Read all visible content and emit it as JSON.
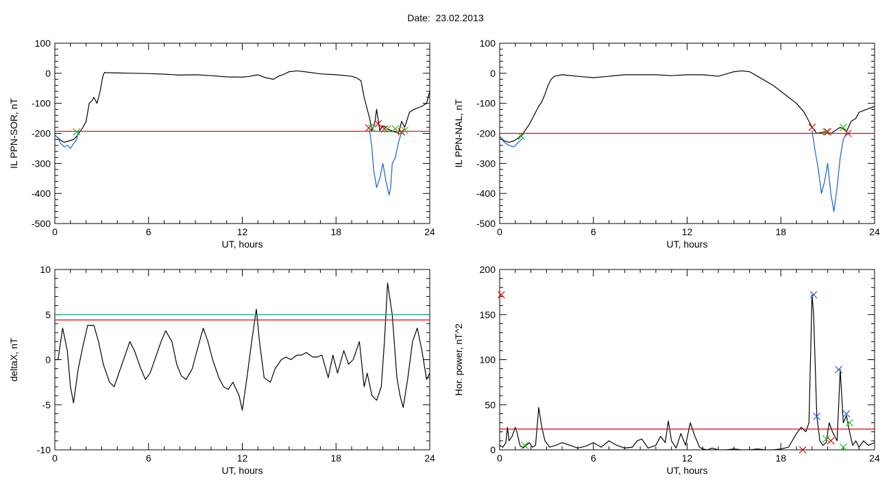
{
  "page": {
    "title": "Date:  23.02.2013"
  },
  "colors": {
    "trace": "#000000",
    "threshold": "#e00000",
    "threshold2": "#1a9e8e",
    "highlight": "#1060d0",
    "marker_red": "#e00000",
    "marker_green": "#20c020",
    "marker_blue": "#2060e0"
  },
  "chart_data": [
    {
      "type": "line",
      "title": "",
      "xlabel": "UT, hours",
      "ylabel": "IL PPN-SOR, nT",
      "xlim": [
        0,
        24
      ],
      "ylim": [
        -500,
        100
      ],
      "xticks": [
        0,
        6,
        12,
        18,
        24
      ],
      "yticks": [
        -500,
        -400,
        -300,
        -200,
        -100,
        0,
        100
      ],
      "grid": false,
      "thresholds": [
        {
          "y": -193,
          "color": "red"
        }
      ],
      "series": [
        {
          "color": "black",
          "x": [
            0,
            0.3,
            0.6,
            0.9,
            1.2,
            1.4,
            1.6,
            1.8,
            2.0,
            2.1,
            2.2,
            2.4,
            2.5,
            2.7,
            2.9,
            3.0,
            3.1,
            3.2,
            3.3,
            4,
            5,
            6,
            7,
            8,
            9,
            10,
            11,
            12,
            12.5,
            13.0,
            13.5,
            14.0,
            14.3,
            14.6,
            15,
            15.5,
            16,
            17,
            18,
            19,
            19.3,
            19.6,
            19.8,
            20.0,
            20.15,
            20.3,
            20.5,
            20.6,
            20.8,
            21.0,
            21.5,
            22.0,
            22.2,
            22.4,
            22.7,
            23.0,
            23.5,
            23.8,
            24.0
          ],
          "y": [
            -205,
            -220,
            -230,
            -225,
            -220,
            -210,
            -195,
            -180,
            -160,
            -130,
            -100,
            -90,
            -80,
            -100,
            -60,
            -30,
            -5,
            3,
            2,
            1,
            0,
            -1,
            -3,
            -6,
            -5,
            -8,
            -12,
            -13,
            -10,
            -5,
            -15,
            -20,
            -10,
            -5,
            5,
            8,
            5,
            -2,
            -5,
            -10,
            -15,
            -25,
            -80,
            -120,
            -150,
            -190,
            -160,
            -120,
            -190,
            -175,
            -190,
            -200,
            -160,
            -180,
            -130,
            -120,
            -110,
            -100,
            -60
          ]
        },
        {
          "color": "blue",
          "x": [
            0,
            0.2,
            0.4,
            0.6,
            0.8,
            1.0,
            1.2,
            1.4,
            1.5
          ],
          "y": [
            -205,
            -215,
            -235,
            -245,
            -240,
            -250,
            -235,
            -220,
            -195
          ]
        },
        {
          "color": "blue",
          "x": [
            20.15,
            20.3,
            20.4,
            20.6,
            20.8,
            21.0,
            21.2,
            21.4,
            21.5,
            21.6,
            21.8,
            22.0,
            22.2
          ],
          "y": [
            -190,
            -250,
            -320,
            -380,
            -350,
            -300,
            -360,
            -405,
            -380,
            -300,
            -280,
            -230,
            -195
          ]
        }
      ],
      "markers": [
        {
          "x": 1.4,
          "y": -195,
          "color": "green"
        },
        {
          "x": 20.1,
          "y": -182,
          "color": "red"
        },
        {
          "x": 20.3,
          "y": -182,
          "color": "green"
        },
        {
          "x": 20.7,
          "y": -168,
          "color": "red"
        },
        {
          "x": 21.1,
          "y": -185,
          "color": "red"
        },
        {
          "x": 21.3,
          "y": -185,
          "color": "green"
        },
        {
          "x": 21.8,
          "y": -185,
          "color": "green"
        },
        {
          "x": 22.2,
          "y": -195,
          "color": "red"
        },
        {
          "x": 22.4,
          "y": -190,
          "color": "green"
        }
      ]
    },
    {
      "type": "line",
      "title": "",
      "xlabel": "UT, hours",
      "ylabel": "IL PPN-NAL, nT",
      "xlim": [
        0,
        24
      ],
      "ylim": [
        -500,
        100
      ],
      "xticks": [
        0,
        6,
        12,
        18,
        24
      ],
      "yticks": [
        -500,
        -400,
        -300,
        -200,
        -100,
        0,
        100
      ],
      "grid": false,
      "thresholds": [
        {
          "y": -200,
          "color": "red"
        }
      ],
      "series": [
        {
          "color": "black",
          "x": [
            0,
            0.3,
            0.6,
            0.9,
            1.2,
            1.5,
            1.7,
            1.9,
            2.1,
            2.3,
            2.5,
            2.7,
            2.9,
            3.1,
            3.3,
            3.5,
            4,
            5,
            6,
            7,
            8,
            9,
            10,
            11,
            12,
            13,
            14,
            15,
            15.5,
            16,
            16.5,
            17,
            17.5,
            18,
            18.5,
            19,
            19.5,
            19.8,
            20.0,
            20.3,
            20.8,
            21.2,
            21.5,
            21.8,
            22.0,
            22.2,
            22.5,
            22.8,
            23.0,
            23.5,
            24.0
          ],
          "y": [
            -210,
            -225,
            -230,
            -225,
            -215,
            -200,
            -185,
            -170,
            -150,
            -130,
            -110,
            -95,
            -70,
            -40,
            -20,
            -10,
            -5,
            -10,
            -15,
            -10,
            -5,
            -5,
            -5,
            -8,
            -5,
            -5,
            -10,
            5,
            8,
            5,
            -10,
            -25,
            -40,
            -60,
            -80,
            -100,
            -130,
            -160,
            -180,
            -200,
            -195,
            -200,
            -190,
            -180,
            -185,
            -195,
            -160,
            -150,
            -130,
            -120,
            -110
          ]
        },
        {
          "color": "blue",
          "x": [
            0,
            0.3,
            0.6,
            0.9,
            1.2,
            1.5
          ],
          "y": [
            -210,
            -230,
            -240,
            -245,
            -230,
            -215
          ]
        },
        {
          "color": "blue",
          "x": [
            20.0,
            20.2,
            20.4,
            20.6,
            20.8,
            21.0,
            21.2,
            21.4,
            21.6,
            21.8,
            22.0,
            22.2
          ],
          "y": [
            -190,
            -260,
            -320,
            -400,
            -360,
            -300,
            -400,
            -460,
            -380,
            -280,
            -220,
            -200
          ]
        }
      ],
      "markers": [
        {
          "x": 1.4,
          "y": -210,
          "color": "green"
        },
        {
          "x": 20.0,
          "y": -180,
          "color": "red"
        },
        {
          "x": 20.9,
          "y": -195,
          "color": "green"
        },
        {
          "x": 21.0,
          "y": -195,
          "color": "red"
        },
        {
          "x": 22.0,
          "y": -180,
          "color": "green"
        },
        {
          "x": 22.3,
          "y": -200,
          "color": "red"
        }
      ]
    },
    {
      "type": "line",
      "title": "",
      "xlabel": "UT, hours",
      "ylabel": "deltaX, nT",
      "xlim": [
        0,
        24
      ],
      "ylim": [
        -10,
        10
      ],
      "xticks": [
        0,
        6,
        12,
        18,
        24
      ],
      "yticks": [
        -10,
        -5,
        0,
        5,
        10
      ],
      "grid": false,
      "thresholds": [
        {
          "y": 5.0,
          "color": "teal"
        },
        {
          "y": 4.4,
          "color": "red"
        }
      ],
      "series": [
        {
          "color": "black",
          "x": [
            0,
            0.2,
            0.5,
            0.8,
            1.0,
            1.2,
            1.5,
            1.8,
            2.1,
            2.5,
            2.8,
            3.1,
            3.5,
            3.8,
            4.1,
            4.5,
            4.8,
            5.1,
            5.5,
            5.8,
            6.1,
            6.5,
            6.8,
            7.1,
            7.5,
            7.8,
            8.1,
            8.4,
            8.8,
            9.1,
            9.5,
            9.8,
            10.1,
            10.5,
            10.8,
            11.1,
            11.4,
            11.8,
            12.0,
            12.3,
            12.6,
            12.9,
            13.1,
            13.4,
            13.8,
            14.1,
            14.5,
            14.8,
            15.1,
            15.5,
            15.8,
            16.1,
            16.5,
            16.8,
            17.1,
            17.5,
            17.8,
            18.1,
            18.5,
            18.8,
            19.1,
            19.5,
            19.8,
            20.0,
            20.3,
            20.6,
            20.9,
            21.1,
            21.3,
            21.6,
            21.9,
            22.1,
            22.3,
            22.6,
            22.9,
            23.2,
            23.5,
            23.8,
            24.0
          ],
          "y": [
            0,
            0,
            3.5,
            1,
            -3,
            -4.8,
            -1,
            1.5,
            3.8,
            3.8,
            2,
            -0.5,
            -2.5,
            -3,
            -1.5,
            0.5,
            2,
            1,
            -1,
            -2.2,
            -1.5,
            0.5,
            2,
            3.2,
            2,
            -0.5,
            -1.8,
            -2.2,
            -1,
            1,
            3.5,
            2,
            0,
            -2,
            -3,
            -3.3,
            -2.5,
            -4,
            -5.6,
            -2,
            2,
            5.6,
            2,
            -2,
            -2.5,
            -1,
            0,
            0.3,
            0,
            0.5,
            0.5,
            0.8,
            0.3,
            0.3,
            0.5,
            -2,
            0.5,
            -1.5,
            1,
            -0.5,
            0,
            2,
            -3,
            -1.5,
            -4,
            -4.5,
            -3,
            2,
            8.5,
            5,
            -2,
            -4,
            -5.3,
            -2,
            2,
            3.5,
            1,
            -2.2,
            -1.5
          ]
        }
      ],
      "markers": []
    },
    {
      "type": "line",
      "title": "",
      "xlabel": "UT, hours",
      "ylabel": "Hor. power, nT^2",
      "xlim": [
        0,
        24
      ],
      "ylim": [
        0,
        200
      ],
      "xticks": [
        0,
        6,
        12,
        18,
        24
      ],
      "yticks": [
        0,
        50,
        100,
        150,
        200
      ],
      "grid": false,
      "thresholds": [
        {
          "y": 23,
          "color": "red"
        }
      ],
      "series": [
        {
          "color": "black",
          "x": [
            0,
            0.2,
            0.4,
            0.5,
            0.6,
            0.8,
            1.0,
            1.1,
            1.3,
            1.5,
            1.7,
            1.9,
            2.1,
            2.3,
            2.5,
            2.7,
            2.9,
            3.2,
            3.6,
            4.0,
            4.5,
            5.0,
            5.5,
            6.0,
            6.5,
            7.0,
            7.5,
            8.0,
            8.5,
            8.8,
            9.1,
            9.5,
            10.0,
            10.3,
            10.6,
            10.8,
            11.0,
            11.3,
            11.6,
            11.9,
            12.2,
            12.5,
            12.8,
            13.0,
            13.3,
            13.6,
            14.0,
            14.5,
            15.0,
            15.5,
            16.0,
            16.5,
            17,
            17.5,
            18.0,
            18.5,
            19.0,
            19.3,
            19.6,
            19.8,
            20.0,
            20.1,
            20.3,
            20.5,
            20.7,
            20.9,
            21.1,
            21.3,
            21.6,
            21.8,
            22.0,
            22.2,
            22.4,
            22.6,
            22.8,
            23.0,
            23.3,
            23.6,
            24.0
          ],
          "y": [
            5,
            3,
            8,
            25,
            10,
            15,
            25,
            20,
            5,
            2,
            5,
            8,
            3,
            5,
            47,
            25,
            10,
            3,
            5,
            8,
            5,
            2,
            4,
            8,
            3,
            10,
            5,
            2,
            3,
            10,
            12,
            2,
            5,
            15,
            8,
            32,
            10,
            2,
            18,
            5,
            30,
            15,
            3,
            1,
            0,
            2,
            0,
            0,
            1,
            0,
            0,
            1,
            0,
            0,
            1,
            3,
            18,
            25,
            20,
            30,
            172,
            150,
            38,
            10,
            5,
            8,
            30,
            20,
            10,
            89,
            30,
            38,
            20,
            5,
            10,
            3,
            10,
            5,
            8
          ]
        }
      ],
      "markers": [
        {
          "x": 0.1,
          "y": 172,
          "color": "red"
        },
        {
          "x": 20.1,
          "y": 172,
          "color": "blue"
        },
        {
          "x": 20.3,
          "y": 37,
          "color": "blue"
        },
        {
          "x": 21.7,
          "y": 89,
          "color": "blue"
        },
        {
          "x": 22.2,
          "y": 40,
          "color": "blue"
        },
        {
          "x": 1.6,
          "y": 5,
          "color": "green"
        },
        {
          "x": 20.9,
          "y": 12,
          "color": "green"
        },
        {
          "x": 21.2,
          "y": 10,
          "color": "red"
        },
        {
          "x": 22.4,
          "y": 30,
          "color": "green"
        },
        {
          "x": 22.0,
          "y": 3,
          "color": "green"
        },
        {
          "x": 19.4,
          "y": 0,
          "color": "red"
        }
      ]
    }
  ]
}
